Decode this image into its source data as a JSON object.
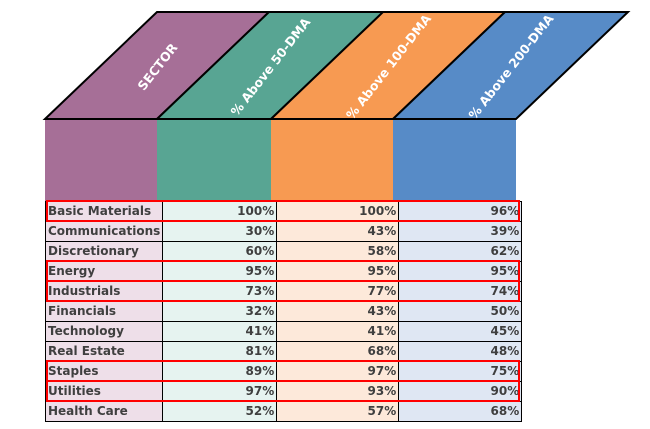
{
  "headers": [
    "SECTOR",
    "% Above 50-DMA",
    "% Above 100-DMA",
    "% Above 200-DMA"
  ],
  "colors": {
    "sector": "#a66f97",
    "dma50": "#58a593",
    "dma100": "#f79a52",
    "dma200": "#578bc7",
    "highlight": "#ff0000"
  },
  "rows": [
    {
      "sector": "Basic Materials",
      "dma50": "100%",
      "dma100": "100%",
      "dma200": "96%",
      "highlighted": true
    },
    {
      "sector": "Communications",
      "dma50": "30%",
      "dma100": "43%",
      "dma200": "39%",
      "highlighted": false
    },
    {
      "sector": "Discretionary",
      "dma50": "60%",
      "dma100": "58%",
      "dma200": "62%",
      "highlighted": false
    },
    {
      "sector": "Energy",
      "dma50": "95%",
      "dma100": "95%",
      "dma200": "95%",
      "highlighted": true
    },
    {
      "sector": "Industrials",
      "dma50": "73%",
      "dma100": "77%",
      "dma200": "74%",
      "highlighted": true
    },
    {
      "sector": "Financials",
      "dma50": "32%",
      "dma100": "43%",
      "dma200": "50%",
      "highlighted": false
    },
    {
      "sector": "Technology",
      "dma50": "41%",
      "dma100": "41%",
      "dma200": "45%",
      "highlighted": false
    },
    {
      "sector": "Real Estate",
      "dma50": "81%",
      "dma100": "68%",
      "dma200": "48%",
      "highlighted": false
    },
    {
      "sector": "Staples",
      "dma50": "89%",
      "dma100": "97%",
      "dma200": "75%",
      "highlighted": true
    },
    {
      "sector": "Utilities",
      "dma50": "97%",
      "dma100": "93%",
      "dma200": "90%",
      "highlighted": true
    },
    {
      "sector": "Health Care",
      "dma50": "52%",
      "dma100": "57%",
      "dma200": "68%",
      "highlighted": false
    }
  ]
}
